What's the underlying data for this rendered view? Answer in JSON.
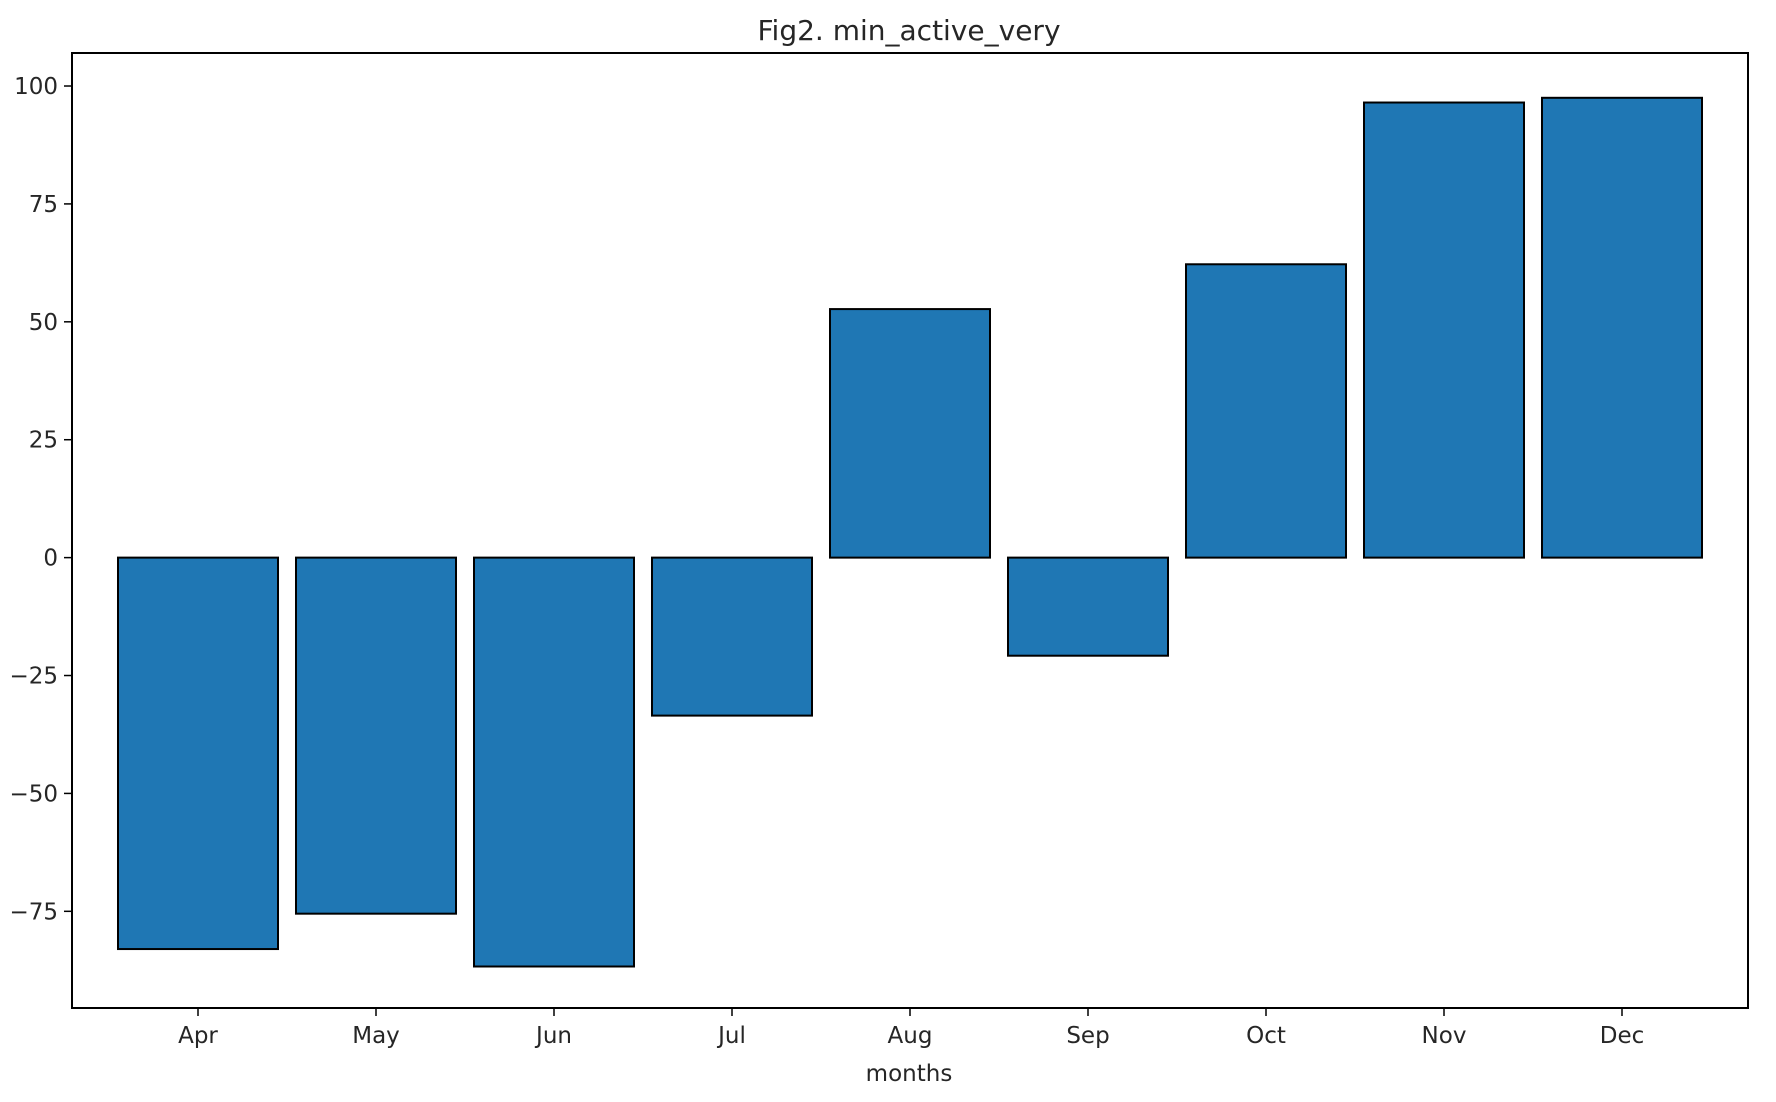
{
  "chart_data": {
    "type": "bar",
    "title": "Fig2. min_active_very",
    "xlabel": "months",
    "ylabel": "",
    "categories": [
      "Apr",
      "May",
      "Jun",
      "Jul",
      "Aug",
      "Sep",
      "Oct",
      "Nov",
      "Dec"
    ],
    "values": [
      -83,
      -75.5,
      -86.7,
      -33.5,
      52.7,
      -20.8,
      62.2,
      96.5,
      97.5
    ],
    "ylim": [
      -95.5,
      107
    ],
    "yticks": [
      100,
      75,
      50,
      25,
      0,
      -25,
      -50,
      -75
    ],
    "ytick_labels": [
      "100",
      "75",
      "50",
      "25",
      "0",
      "−25",
      "−50",
      "−75"
    ],
    "bar_color": "#1f77b4",
    "edge_color": "#000000",
    "grid": false,
    "legend": "none"
  }
}
